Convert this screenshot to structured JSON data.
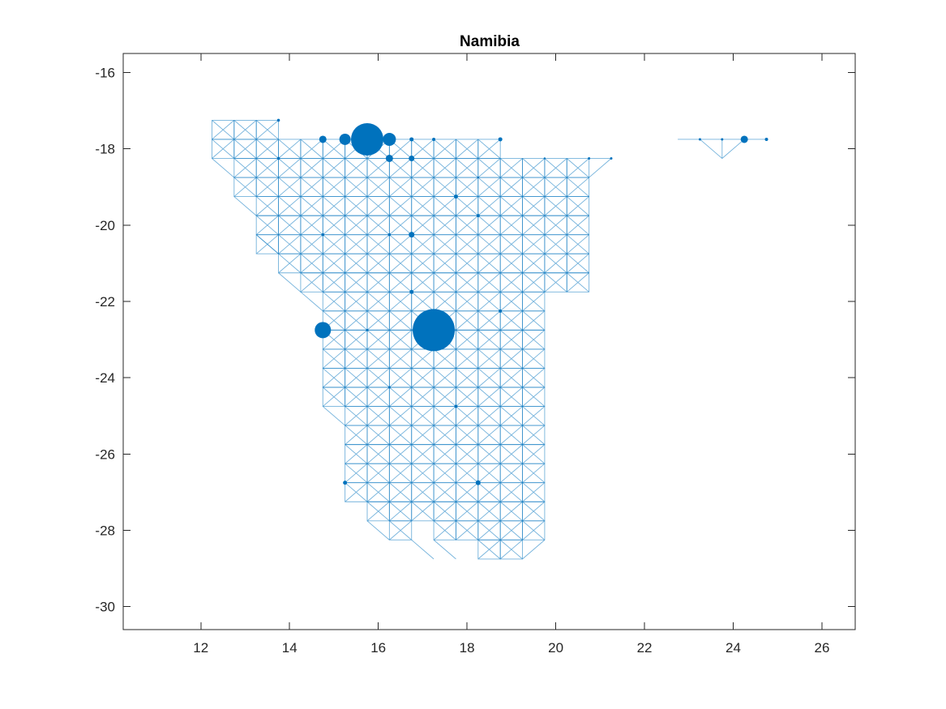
{
  "colors": {
    "series": "#0072BD",
    "axis": "#262626",
    "background": "#ffffff"
  },
  "chart_data": {
    "type": "scatter",
    "title": "Namibia",
    "xlabel": "",
    "ylabel": "",
    "xlim": [
      10.25,
      26.75
    ],
    "ylim": [
      -30.6,
      -15.5
    ],
    "xticks": [
      12,
      14,
      16,
      18,
      20,
      22,
      24,
      26
    ],
    "yticks": [
      -16,
      -18,
      -20,
      -22,
      -24,
      -26,
      -28,
      -30
    ],
    "grid": false,
    "legend": "none",
    "grid_cells": {
      "cell_size": 0.5,
      "rows": [
        {
          "y": -17.5,
          "x_ranges": [
            [
              12.25,
              13.75
            ]
          ]
        },
        {
          "y": -18.0,
          "x_ranges": [
            [
              12.25,
              18.75
            ]
          ]
        },
        {
          "y": -18.5,
          "x_ranges": [
            [
              12.75,
              20.75
            ]
          ]
        },
        {
          "y": -19.0,
          "x_ranges": [
            [
              12.75,
              20.75
            ]
          ]
        },
        {
          "y": -19.5,
          "x_ranges": [
            [
              13.25,
              20.75
            ]
          ]
        },
        {
          "y": -20.0,
          "x_ranges": [
            [
              13.25,
              20.75
            ]
          ]
        },
        {
          "y": -20.5,
          "x_ranges": [
            [
              13.25,
              20.75
            ]
          ]
        },
        {
          "y": -21.0,
          "x_ranges": [
            [
              13.75,
              20.75
            ]
          ]
        },
        {
          "y": -21.5,
          "x_ranges": [
            [
              14.25,
              20.75
            ]
          ]
        },
        {
          "y": -22.0,
          "x_ranges": [
            [
              14.75,
              19.75
            ]
          ]
        },
        {
          "y": -22.5,
          "x_ranges": [
            [
              14.75,
              19.75
            ]
          ]
        },
        {
          "y": -23.0,
          "x_ranges": [
            [
              14.75,
              19.75
            ]
          ]
        },
        {
          "y": -23.5,
          "x_ranges": [
            [
              14.75,
              19.75
            ]
          ]
        },
        {
          "y": -24.0,
          "x_ranges": [
            [
              14.75,
              19.75
            ]
          ]
        },
        {
          "y": -24.5,
          "x_ranges": [
            [
              14.75,
              19.75
            ]
          ]
        },
        {
          "y": -25.0,
          "x_ranges": [
            [
              15.25,
              19.75
            ]
          ]
        },
        {
          "y": -25.5,
          "x_ranges": [
            [
              15.25,
              19.75
            ]
          ]
        },
        {
          "y": -26.0,
          "x_ranges": [
            [
              15.25,
              19.75
            ]
          ]
        },
        {
          "y": -26.5,
          "x_ranges": [
            [
              15.25,
              19.75
            ]
          ]
        },
        {
          "y": -27.0,
          "x_ranges": [
            [
              15.25,
              19.75
            ]
          ]
        },
        {
          "y": -27.5,
          "x_ranges": [
            [
              15.75,
              19.75
            ]
          ]
        },
        {
          "y": -28.0,
          "x_ranges": [
            [
              16.25,
              16.75
            ],
            [
              17.25,
              19.75
            ]
          ]
        },
        {
          "y": -28.5,
          "x_ranges": [
            [
              18.25,
              19.25
            ]
          ]
        }
      ]
    },
    "extra_edges": [
      [
        [
          12.25,
          18.25
        ],
        [
          12.75,
          18.75
        ]
      ],
      [
        [
          12.75,
          19.25
        ],
        [
          13.25,
          19.75
        ]
      ],
      [
        [
          13.25,
          20.25
        ],
        [
          13.75,
          20.75
        ]
      ],
      [
        [
          13.75,
          21.25
        ],
        [
          14.25,
          21.75
        ]
      ],
      [
        [
          14.25,
          21.75
        ],
        [
          14.75,
          22.25
        ]
      ],
      [
        [
          14.75,
          24.75
        ],
        [
          15.25,
          25.25
        ]
      ],
      [
        [
          15.75,
          27.75
        ],
        [
          16.25,
          28.25
        ]
      ],
      [
        [
          16.75,
          28.25
        ],
        [
          17.25,
          28.75
        ]
      ],
      [
        [
          17.25,
          28.25
        ],
        [
          17.75,
          28.75
        ]
      ],
      [
        [
          19.25,
          28.75
        ],
        [
          19.75,
          28.25
        ]
      ],
      [
        [
          20.75,
          18.25
        ],
        [
          21.25,
          18.25
        ]
      ],
      [
        [
          20.75,
          18.75
        ],
        [
          21.25,
          18.25
        ]
      ],
      [
        [
          22.75,
          17.75
        ],
        [
          24.75,
          17.75
        ]
      ],
      [
        [
          23.25,
          17.75
        ],
        [
          23.75,
          18.25
        ]
      ],
      [
        [
          24.25,
          17.75
        ],
        [
          23.75,
          18.25
        ]
      ],
      [
        [
          23.75,
          17.75
        ],
        [
          23.75,
          18.25
        ]
      ]
    ],
    "points": [
      {
        "x": 15.75,
        "y": -17.75,
        "size": 20
      },
      {
        "x": 17.25,
        "y": -22.75,
        "size": 26
      },
      {
        "x": 14.75,
        "y": -22.75,
        "size": 10
      },
      {
        "x": 15.25,
        "y": -17.75,
        "size": 7
      },
      {
        "x": 16.25,
        "y": -17.75,
        "size": 8
      },
      {
        "x": 14.75,
        "y": -17.75,
        "size": 4.5
      },
      {
        "x": 24.25,
        "y": -17.75,
        "size": 4.5
      },
      {
        "x": 16.25,
        "y": -18.25,
        "size": 4.5
      },
      {
        "x": 16.75,
        "y": -18.25,
        "size": 3.5
      },
      {
        "x": 16.75,
        "y": -20.25,
        "size": 3.5
      },
      {
        "x": 17.75,
        "y": -19.25,
        "size": 2.5
      },
      {
        "x": 18.25,
        "y": -26.75,
        "size": 3
      },
      {
        "x": 15.25,
        "y": -26.75,
        "size": 2.5
      },
      {
        "x": 16.75,
        "y": -21.75,
        "size": 2.5
      },
      {
        "x": 18.75,
        "y": -17.75,
        "size": 2.5
      },
      {
        "x": 16.75,
        "y": -17.75,
        "size": 2.5
      },
      {
        "x": 17.25,
        "y": -17.75,
        "size": 2
      },
      {
        "x": 18.25,
        "y": -19.75,
        "size": 2
      },
      {
        "x": 18.75,
        "y": -22.25,
        "size": 2
      },
      {
        "x": 17.75,
        "y": -24.75,
        "size": 2
      },
      {
        "x": 13.75,
        "y": -17.25,
        "size": 1.8
      },
      {
        "x": 13.75,
        "y": -18.25,
        "size": 1.8
      },
      {
        "x": 14.75,
        "y": -20.25,
        "size": 1.8
      },
      {
        "x": 16.25,
        "y": -20.25,
        "size": 1.8
      },
      {
        "x": 16.25,
        "y": -24.25,
        "size": 1.5
      },
      {
        "x": 24.75,
        "y": -17.75,
        "size": 2
      },
      {
        "x": 23.25,
        "y": -17.75,
        "size": 1.5
      },
      {
        "x": 23.75,
        "y": -17.75,
        "size": 1.5
      },
      {
        "x": 21.25,
        "y": -18.25,
        "size": 1.5
      },
      {
        "x": 20.75,
        "y": -18.25,
        "size": 1.5
      },
      {
        "x": 19.75,
        "y": -18.25,
        "size": 1.2
      },
      {
        "x": 15.75,
        "y": -22.75,
        "size": 1.5
      },
      {
        "x": 18.25,
        "y": -18.75,
        "size": 1.2
      }
    ]
  }
}
